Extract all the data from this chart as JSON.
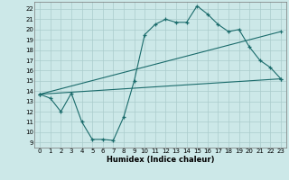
{
  "bg_color": "#cce8e8",
  "grid_color": "#aacccc",
  "line_color": "#1a6b6b",
  "xlabel": "Humidex (Indice chaleur)",
  "ylim": [
    8.5,
    22.7
  ],
  "xlim": [
    -0.5,
    23.5
  ],
  "yticks": [
    9,
    10,
    11,
    12,
    13,
    14,
    15,
    16,
    17,
    18,
    19,
    20,
    21,
    22
  ],
  "xticks": [
    0,
    1,
    2,
    3,
    4,
    5,
    6,
    7,
    8,
    9,
    10,
    11,
    12,
    13,
    14,
    15,
    16,
    17,
    18,
    19,
    20,
    21,
    22,
    23
  ],
  "zigzag_x": [
    0,
    1,
    2,
    3,
    4,
    5,
    6,
    7,
    8,
    9,
    10,
    11,
    12,
    13,
    14,
    15,
    16,
    17,
    18,
    19,
    20,
    21,
    22,
    23
  ],
  "zigzag_y": [
    13.7,
    13.3,
    12.0,
    13.8,
    11.0,
    9.3,
    9.3,
    9.2,
    11.5,
    15.0,
    19.5,
    20.5,
    21.0,
    20.7,
    20.7,
    22.3,
    21.5,
    20.5,
    19.8,
    20.0,
    18.3,
    17.0,
    16.3,
    15.2
  ],
  "line1_x": [
    0,
    23
  ],
  "line1_y": [
    13.7,
    19.8
  ],
  "line2_x": [
    0,
    23
  ],
  "line2_y": [
    13.7,
    15.2
  ]
}
